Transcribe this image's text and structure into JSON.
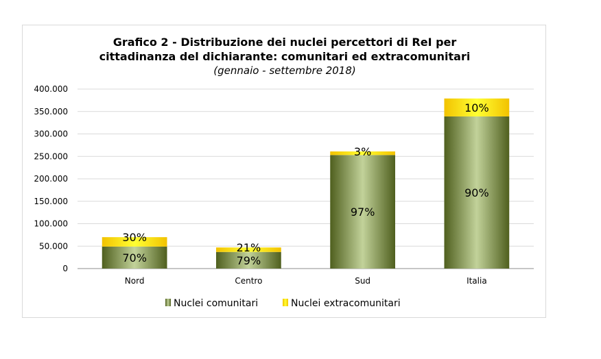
{
  "chart_data": {
    "type": "bar",
    "stacked": true,
    "title_lines": [
      "Grafico 2 - Distribuzione dei nuclei percettori di ReI per",
      "cittadinanza del dichiarante: comunitari ed extracomunitari"
    ],
    "subtitle": "(gennaio - settembre 2018)",
    "categories": [
      "Nord",
      "Centro",
      "Sud",
      "Italia"
    ],
    "series": [
      {
        "name": "Nuclei comunitari",
        "values": [
          49000,
          37000,
          253000,
          339000
        ],
        "labels": [
          "70%",
          "79%",
          "97%",
          "90%"
        ],
        "color": "#6b7d2e"
      },
      {
        "name": "Nuclei extracomunitari",
        "values": [
          21000,
          10000,
          8000,
          40000
        ],
        "labels": [
          "30%",
          "21%",
          "3%",
          "10%"
        ],
        "color": "#ffd700"
      }
    ],
    "yticks": [
      "0",
      "50.000",
      "100.000",
      "150.000",
      "200.000",
      "250.000",
      "300.000",
      "350.000",
      "400.000"
    ],
    "ylim": [
      0,
      400000
    ],
    "grid": true,
    "legend_position": "bottom"
  }
}
